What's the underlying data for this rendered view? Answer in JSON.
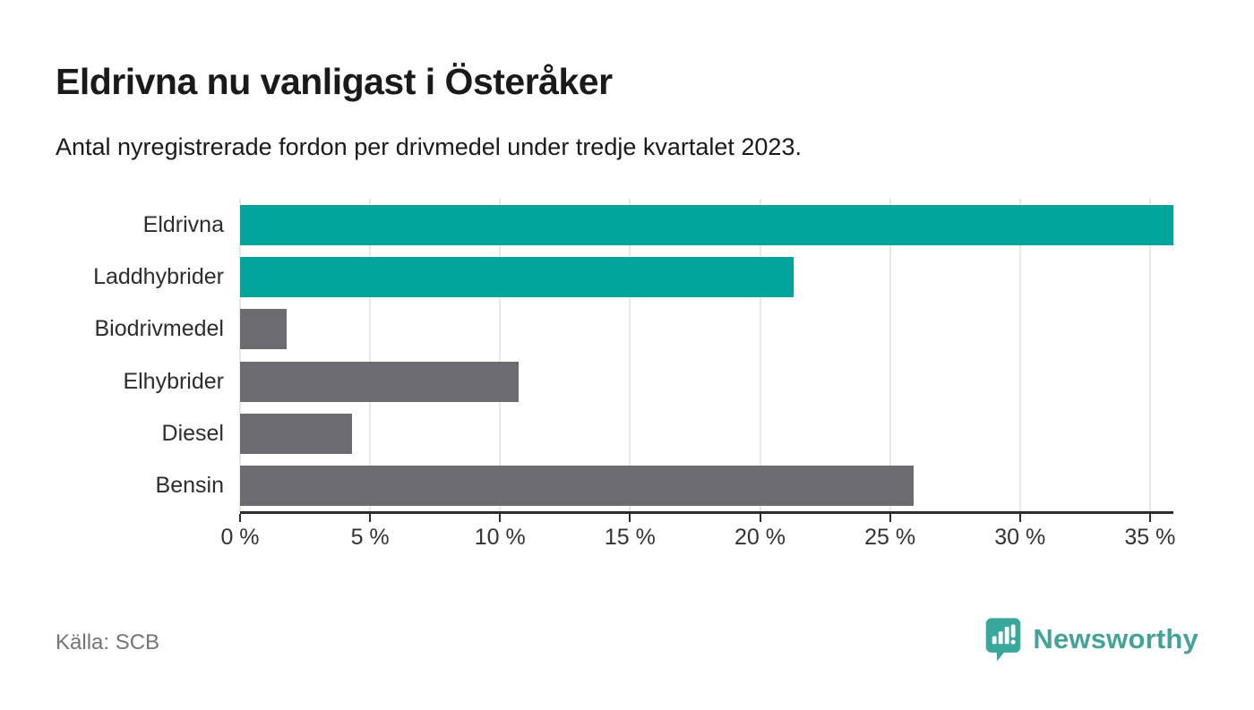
{
  "header": {
    "title": "Eldrivna nu vanligast i Österåker",
    "subtitle": "Antal nyregistrerade fordon per drivmedel under tredje kvartalet 2023."
  },
  "chart_data": {
    "type": "bar",
    "orientation": "horizontal",
    "title": "Eldrivna nu vanligast i Österåker",
    "subtitle": "Antal nyregistrerade fordon per drivmedel under tredje kvartalet 2023.",
    "categories": [
      "Eldrivna",
      "Laddhybrider",
      "Biodrivmedel",
      "Elhybrider",
      "Diesel",
      "Bensin"
    ],
    "values": [
      35.9,
      21.3,
      1.8,
      10.7,
      4.3,
      25.9
    ],
    "unit": "%",
    "bar_colors": [
      "#00a49b",
      "#00a49b",
      "#6c6b72",
      "#6c6b72",
      "#6c6b72",
      "#6c6b72"
    ],
    "highlight_color": "#00a49b",
    "default_color": "#6c6b72",
    "xlim": [
      0,
      35.9
    ],
    "x_tick_values": [
      0,
      5,
      10,
      15,
      20,
      25,
      30,
      35
    ],
    "x_tick_labels": [
      "0 %",
      "5 %",
      "10 %",
      "15 %",
      "20 %",
      "25 %",
      "30 %",
      "35 %"
    ],
    "grid": true,
    "legend": false
  },
  "footer": {
    "source": "Källa: SCB",
    "brand": "Newsworthy"
  },
  "colors": {
    "grid": "#e8e8e8",
    "axis": "#2d2d2d",
    "text": "#1a1a1a",
    "muted_text": "#757575",
    "brand_teal": "#45a29b"
  }
}
